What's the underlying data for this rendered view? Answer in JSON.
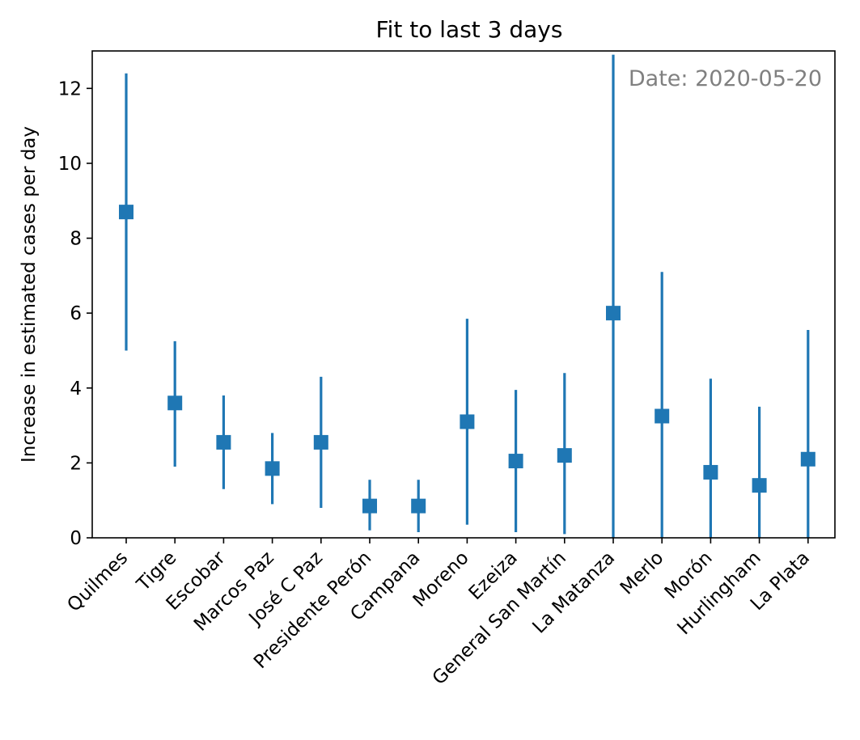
{
  "chart_data": {
    "type": "scatter",
    "title": "Fit to last 3 days",
    "xlabel": "",
    "ylabel": "Increase in estimated cases per day",
    "annotation": "Date: 2020-05-20",
    "ylim": [
      0,
      13
    ],
    "yticks": [
      0,
      2,
      4,
      6,
      8,
      10,
      12
    ],
    "categories": [
      "Quilmes",
      "Tigre",
      "Escobar",
      "Marcos Paz",
      "José C Paz",
      "Presidente Perón",
      "Campana",
      "Moreno",
      "Ezeiza",
      "General San Martín",
      "La Matanza",
      "Merlo",
      "Morón",
      "Hurlingham",
      "La Plata"
    ],
    "series": [
      {
        "values": [
          8.7,
          3.6,
          2.55,
          1.85,
          2.55,
          0.85,
          0.85,
          3.1,
          2.05,
          2.2,
          6.0,
          3.25,
          1.75,
          1.4,
          2.1
        ],
        "lower": [
          5.0,
          1.9,
          1.3,
          0.9,
          0.8,
          0.2,
          0.15,
          0.35,
          0.15,
          0.1,
          0.0,
          0.0,
          0.0,
          0.0,
          0.0
        ],
        "upper": [
          12.4,
          5.25,
          3.8,
          2.8,
          4.3,
          1.55,
          1.55,
          5.85,
          3.95,
          4.4,
          12.9,
          7.1,
          4.25,
          3.5,
          5.55
        ]
      }
    ],
    "grid": false,
    "colors": {
      "series": "#1f77b4",
      "annotation": "#808080"
    }
  }
}
